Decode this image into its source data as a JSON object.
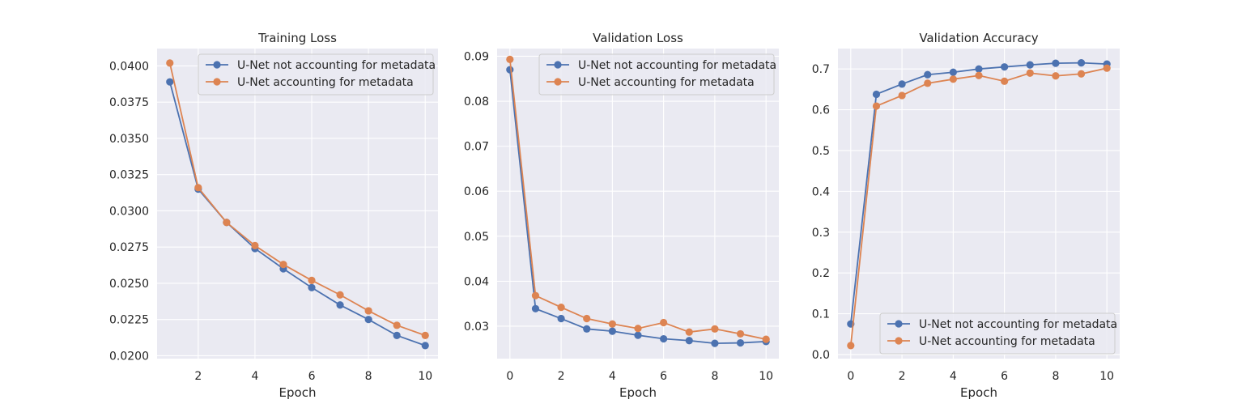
{
  "colors": {
    "series_1": "#4c72b0",
    "series_2": "#dd8452",
    "panel_bg": "#eaeaf2",
    "grid": "#ffffff",
    "text": "#262626"
  },
  "chart_data": [
    {
      "type": "line",
      "title": "Training Loss",
      "xlabel": "Epoch",
      "ylabel": "",
      "xlim": [
        0.55,
        10.45
      ],
      "ylim": [
        0.0198,
        0.0412
      ],
      "xticks": [
        2,
        4,
        6,
        8,
        10
      ],
      "xtick_labels": [
        "2",
        "4",
        "6",
        "8",
        "10"
      ],
      "yticks": [
        0.02,
        0.0225,
        0.025,
        0.0275,
        0.03,
        0.0325,
        0.035,
        0.0375,
        0.04
      ],
      "ytick_labels": [
        "0.0200",
        "0.0225",
        "0.0250",
        "0.0275",
        "0.0300",
        "0.0325",
        "0.0350",
        "0.0375",
        "0.0400"
      ],
      "grid": true,
      "legend": "top-right",
      "x": [
        1,
        2,
        3,
        4,
        5,
        6,
        7,
        8,
        9,
        10
      ],
      "series": [
        {
          "name": "U-Net not accounting for metadata",
          "values": [
            0.0389,
            0.0315,
            0.0292,
            0.0274,
            0.026,
            0.0247,
            0.0235,
            0.0225,
            0.0214,
            0.0207
          ]
        },
        {
          "name": "U-Net accounting for metadata",
          "values": [
            0.0402,
            0.0316,
            0.0292,
            0.0276,
            0.0263,
            0.0252,
            0.0242,
            0.0231,
            0.0221,
            0.0214
          ]
        }
      ]
    },
    {
      "type": "line",
      "title": "Validation Loss",
      "xlabel": "Epoch",
      "ylabel": "",
      "xlim": [
        -0.5,
        10.5
      ],
      "ylim": [
        0.0228,
        0.0917
      ],
      "xticks": [
        0,
        2,
        4,
        6,
        8,
        10
      ],
      "xtick_labels": [
        "0",
        "2",
        "4",
        "6",
        "8",
        "10"
      ],
      "yticks": [
        0.03,
        0.04,
        0.05,
        0.06,
        0.07,
        0.08,
        0.09
      ],
      "ytick_labels": [
        "0.03",
        "0.04",
        "0.05",
        "0.06",
        "0.07",
        "0.08",
        "0.09"
      ],
      "grid": true,
      "legend": "top-right",
      "x": [
        0,
        1,
        2,
        3,
        4,
        5,
        6,
        7,
        8,
        9,
        10
      ],
      "series": [
        {
          "name": "U-Net not accounting for metadata",
          "values": [
            0.087,
            0.0339,
            0.0317,
            0.0294,
            0.0289,
            0.028,
            0.0272,
            0.0268,
            0.0262,
            0.0263,
            0.0266
          ]
        },
        {
          "name": "U-Net accounting for metadata",
          "values": [
            0.0893,
            0.0368,
            0.0342,
            0.0317,
            0.0305,
            0.0295,
            0.0308,
            0.0287,
            0.0294,
            0.0283,
            0.0271
          ]
        }
      ]
    },
    {
      "type": "line",
      "title": "Validation Accuracy",
      "xlabel": "Epoch",
      "ylabel": "",
      "xlim": [
        -0.5,
        10.5
      ],
      "ylim": [
        -0.01,
        0.75
      ],
      "xticks": [
        0,
        2,
        4,
        6,
        8,
        10
      ],
      "xtick_labels": [
        "0",
        "2",
        "4",
        "6",
        "8",
        "10"
      ],
      "yticks": [
        0.0,
        0.1,
        0.2,
        0.3,
        0.4,
        0.5,
        0.6,
        0.7
      ],
      "ytick_labels": [
        "0.0",
        "0.1",
        "0.2",
        "0.3",
        "0.4",
        "0.5",
        "0.6",
        "0.7"
      ],
      "grid": true,
      "legend": "bottom-right",
      "x": [
        0,
        1,
        2,
        3,
        4,
        5,
        6,
        7,
        8,
        9,
        10
      ],
      "series": [
        {
          "name": "U-Net not accounting for metadata",
          "values": [
            0.075,
            0.638,
            0.663,
            0.686,
            0.692,
            0.7,
            0.705,
            0.71,
            0.714,
            0.715,
            0.712
          ]
        },
        {
          "name": "U-Net accounting for metadata",
          "values": [
            0.022,
            0.609,
            0.635,
            0.665,
            0.675,
            0.684,
            0.67,
            0.69,
            0.683,
            0.688,
            0.702
          ]
        }
      ]
    }
  ]
}
